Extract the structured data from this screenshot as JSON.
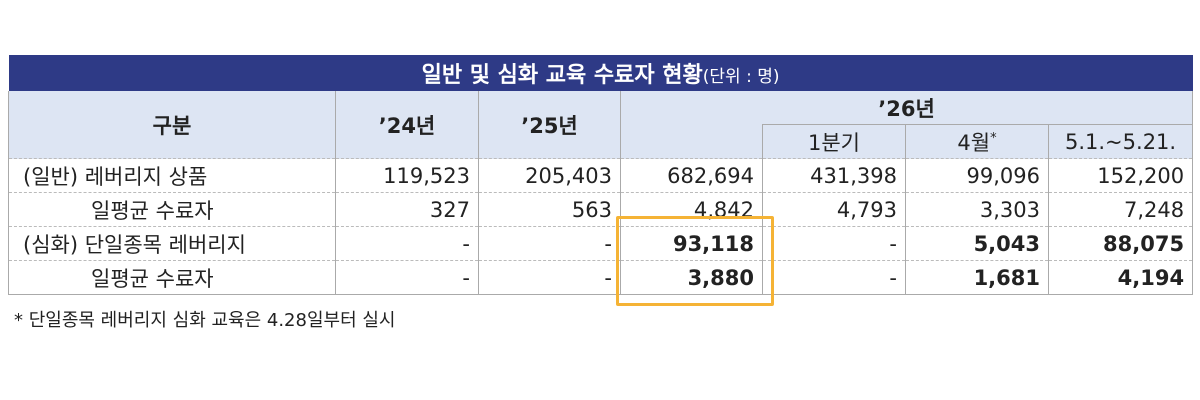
{
  "title": "일반 및 심화 교육 수료자 현황",
  "unit": "(단위 : 명)",
  "header": {
    "category": "구분",
    "years": [
      "’24년",
      "’25년",
      "’26년"
    ],
    "subheaders": [
      "1분기",
      "4월",
      "5.1.~5.21."
    ],
    "subheader_mark": "*"
  },
  "rows": [
    {
      "label": "(일반) 레버리지 상품",
      "values": [
        "119,523",
        "205,403",
        "682,694",
        "431,398",
        "99,096",
        "152,200"
      ]
    },
    {
      "label": "일평균 수료자",
      "values": [
        "327",
        "563",
        "4,842",
        "4,793",
        "3,303",
        "7,248"
      ]
    },
    {
      "label": "(심화) 단일종목 레버리지",
      "values": [
        "-",
        "-",
        "93,118",
        "-",
        "5,043",
        "88,075"
      ]
    },
    {
      "label": "일평균 수료자",
      "values": [
        "-",
        "-",
        "3,880",
        "-",
        "1,681",
        "4,194"
      ]
    }
  ],
  "footnote": "* 단일종목 레버리지 심화 교육은 4.28일부터 실시"
}
